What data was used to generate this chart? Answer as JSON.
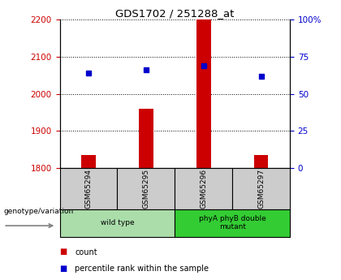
{
  "title": "GDS1702 / 251288_at",
  "samples": [
    "GSM65294",
    "GSM65295",
    "GSM65296",
    "GSM65297"
  ],
  "counts": [
    1835,
    1960,
    2200,
    1835
  ],
  "percentiles": [
    64,
    66,
    69,
    62
  ],
  "ylim_left": [
    1800,
    2200
  ],
  "ylim_right": [
    0,
    100
  ],
  "yticks_left": [
    1800,
    1900,
    2000,
    2100,
    2200
  ],
  "yticks_right": [
    0,
    25,
    50,
    75,
    100
  ],
  "bar_color": "#cc0000",
  "dot_color": "#0000cc",
  "bar_width": 0.25,
  "groups": [
    {
      "label": "wild type",
      "samples": [
        0,
        1
      ],
      "color": "#aaddaa"
    },
    {
      "label": "phyA phyB double\nmutant",
      "samples": [
        2,
        3
      ],
      "color": "#33cc33"
    }
  ],
  "legend_count": "count",
  "legend_percentile": "percentile rank within the sample",
  "genotype_label": "genotype/variation",
  "bar_color_rgb": "#cc0000",
  "dot_color_rgb": "#0000cc",
  "tick_left_color": "#cc0000",
  "tick_right_color": "#0000cc",
  "sample_box_color": "#cccccc",
  "grid_color": "black"
}
